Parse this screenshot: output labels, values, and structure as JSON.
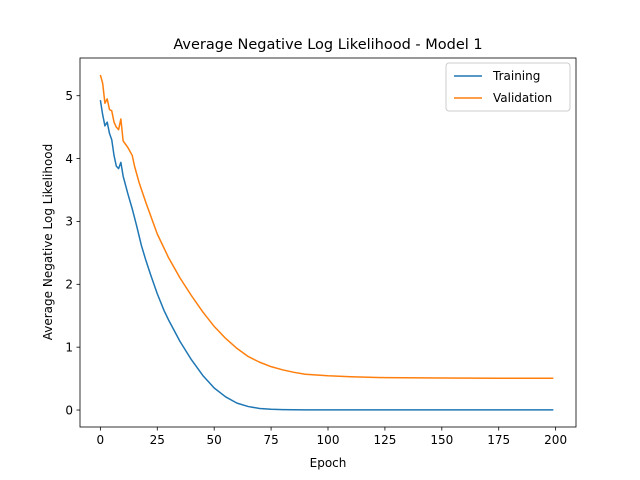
{
  "chart_data": {
    "type": "line",
    "title": "Average Negative Log Likelihood - Model 1",
    "xlabel": "Epoch",
    "ylabel": "Average Negative Log Likelihood",
    "xlim": [
      -8.95,
      208.95
    ],
    "ylim": [
      -0.27,
      5.6
    ],
    "xticks": [
      0,
      25,
      50,
      75,
      100,
      125,
      150,
      175,
      200
    ],
    "yticks": [
      0,
      1,
      2,
      3,
      4,
      5
    ],
    "grid": false,
    "legend_position": "top-right",
    "series": [
      {
        "name": "Training",
        "color": "#1f77b4",
        "x": [
          0,
          1,
          2,
          3,
          4,
          5,
          6,
          7,
          8,
          9,
          10,
          12,
          14,
          16,
          18,
          20,
          22,
          25,
          28,
          30,
          35,
          40,
          45,
          50,
          55,
          60,
          65,
          70,
          75,
          80,
          85,
          90,
          100,
          110,
          125,
          150,
          175,
          199
        ],
        "y": [
          4.93,
          4.7,
          4.52,
          4.58,
          4.4,
          4.3,
          4.05,
          3.88,
          3.84,
          3.94,
          3.72,
          3.45,
          3.2,
          2.92,
          2.62,
          2.38,
          2.16,
          1.85,
          1.58,
          1.43,
          1.09,
          0.8,
          0.55,
          0.35,
          0.21,
          0.11,
          0.055,
          0.025,
          0.012,
          0.007,
          0.004,
          0.003,
          0.002,
          0.002,
          0.002,
          0.002,
          0.002,
          0.002
        ]
      },
      {
        "name": "Validation",
        "color": "#ff7f0e",
        "x": [
          0,
          1,
          2,
          3,
          4,
          5,
          6,
          7,
          8,
          9,
          10,
          12,
          14,
          15,
          17,
          20,
          25,
          30,
          35,
          40,
          45,
          50,
          55,
          60,
          65,
          70,
          75,
          80,
          85,
          90,
          100,
          110,
          125,
          150,
          175,
          199
        ],
        "y": [
          5.33,
          5.2,
          4.88,
          4.95,
          4.78,
          4.76,
          4.58,
          4.5,
          4.46,
          4.63,
          4.28,
          4.18,
          4.05,
          3.88,
          3.62,
          3.3,
          2.8,
          2.42,
          2.1,
          1.82,
          1.56,
          1.33,
          1.14,
          0.98,
          0.85,
          0.76,
          0.69,
          0.64,
          0.6,
          0.57,
          0.545,
          0.53,
          0.515,
          0.51,
          0.505,
          0.505
        ]
      }
    ]
  }
}
